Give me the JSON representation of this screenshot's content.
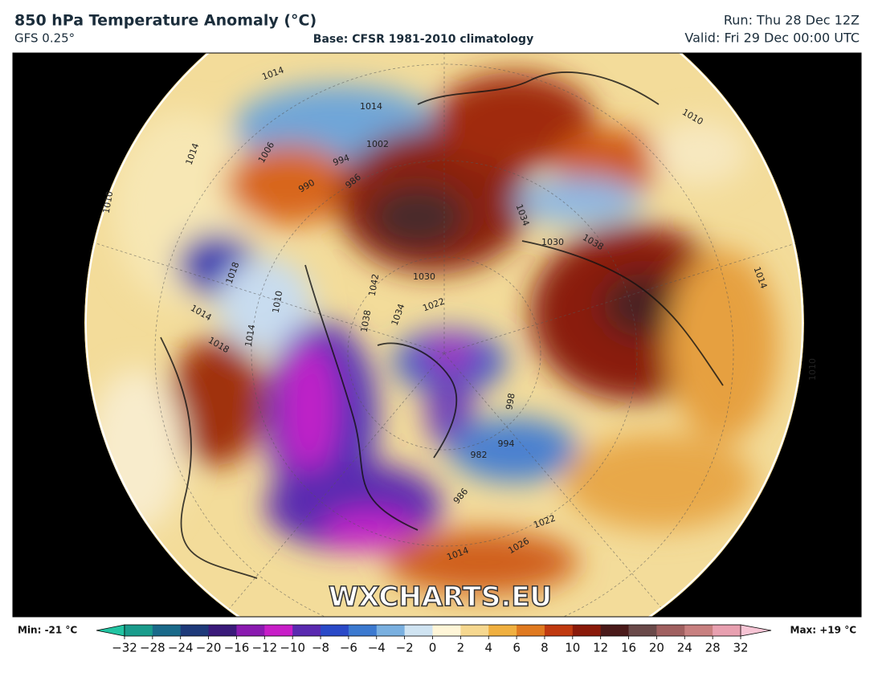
{
  "header": {
    "title": "850 hPa Temperature Anomaly (°C)",
    "model": "GFS 0.25°",
    "base": "Base: CFSR 1981-2010 climatology",
    "run": "Run: Thu 28 Dec 12Z",
    "valid": "Valid: Fri 29 Dec 00:00 UTC"
  },
  "map": {
    "watermark": "WXCHARTS.EU",
    "isobar_labels": [
      "1014",
      "1014",
      "1010",
      "1006",
      "994",
      "1002",
      "990",
      "986",
      "1014",
      "1010",
      "1018",
      "1010",
      "1014",
      "1018",
      "1014",
      "1042",
      "1038",
      "1034",
      "1030",
      "1022",
      "1030",
      "1038",
      "1034",
      "1014",
      "998",
      "994",
      "982",
      "986",
      "1026",
      "1022",
      "1014",
      "1010"
    ]
  },
  "colorbar": {
    "min_label": "Min: -21 °C",
    "max_label": "Max: +19 °C",
    "ticks": [
      {
        "value": -32,
        "label": "−32"
      },
      {
        "value": -28,
        "label": "−28"
      },
      {
        "value": -24,
        "label": "−24"
      },
      {
        "value": -20,
        "label": "−20"
      },
      {
        "value": -16,
        "label": "−16"
      },
      {
        "value": -12,
        "label": "−12"
      },
      {
        "value": -10,
        "label": "−10"
      },
      {
        "value": -8,
        "label": "−8"
      },
      {
        "value": -6,
        "label": "−6"
      },
      {
        "value": -4,
        "label": "−4"
      },
      {
        "value": -2,
        "label": "−2"
      },
      0,
      2,
      4,
      6,
      8,
      10,
      12,
      16,
      20,
      24,
      28,
      32
    ],
    "under_color": "#22c4a2",
    "over_color": "#f6c4d4",
    "colors": [
      "#1a9c8c",
      "#1a6a8a",
      "#1e3a7a",
      "#3a1a7a",
      "#8a1ab0",
      "#c81ec8",
      "#5a2ab0",
      "#2a4ac8",
      "#3c7ad0",
      "#7ab0e0",
      "#d0e4f2",
      "#fff6d8",
      "#f6d890",
      "#f0b040",
      "#e07a20",
      "#c03a10",
      "#8a1a0a",
      "#4a1a1a",
      "#6a4a4a",
      "#a06060",
      "#c88080",
      "#e8a0b0"
    ]
  }
}
